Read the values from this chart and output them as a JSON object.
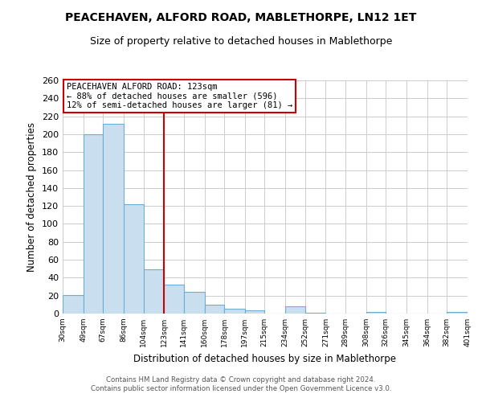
{
  "title1": "PEACEHAVEN, ALFORD ROAD, MABLETHORPE, LN12 1ET",
  "title2": "Size of property relative to detached houses in Mablethorpe",
  "xlabel": "Distribution of detached houses by size in Mablethorpe",
  "ylabel": "Number of detached properties",
  "bar_edges": [
    30,
    49,
    67,
    86,
    104,
    123,
    141,
    160,
    178,
    197,
    215,
    234,
    252,
    271,
    289,
    308,
    326,
    345,
    364,
    382,
    401
  ],
  "bar_heights": [
    21,
    200,
    212,
    122,
    49,
    32,
    24,
    10,
    5,
    4,
    0,
    8,
    1,
    0,
    0,
    2,
    0,
    0,
    0,
    2
  ],
  "bar_color": "#c9dff0",
  "bar_edgecolor": "#6aaed6",
  "vline_x": 123,
  "vline_color": "#cc0000",
  "annotation_title": "PEACEHAVEN ALFORD ROAD: 123sqm",
  "annotation_line1": "← 88% of detached houses are smaller (596)",
  "annotation_line2": "12% of semi-detached houses are larger (81) →",
  "annotation_box_color": "#ffffff",
  "annotation_box_edgecolor": "#cc0000",
  "ylim": [
    0,
    260
  ],
  "xlim": [
    30,
    401
  ],
  "yticks": [
    0,
    20,
    40,
    60,
    80,
    100,
    120,
    140,
    160,
    180,
    200,
    220,
    240,
    260
  ],
  "tick_labels": [
    "30sqm",
    "49sqm",
    "67sqm",
    "86sqm",
    "104sqm",
    "123sqm",
    "141sqm",
    "160sqm",
    "178sqm",
    "197sqm",
    "215sqm",
    "234sqm",
    "252sqm",
    "271sqm",
    "289sqm",
    "308sqm",
    "326sqm",
    "345sqm",
    "364sqm",
    "382sqm",
    "401sqm"
  ],
  "footer1": "Contains HM Land Registry data © Crown copyright and database right 2024.",
  "footer2": "Contains public sector information licensed under the Open Government Licence v3.0.",
  "bg_color": "#ffffff",
  "grid_color": "#cccccc"
}
